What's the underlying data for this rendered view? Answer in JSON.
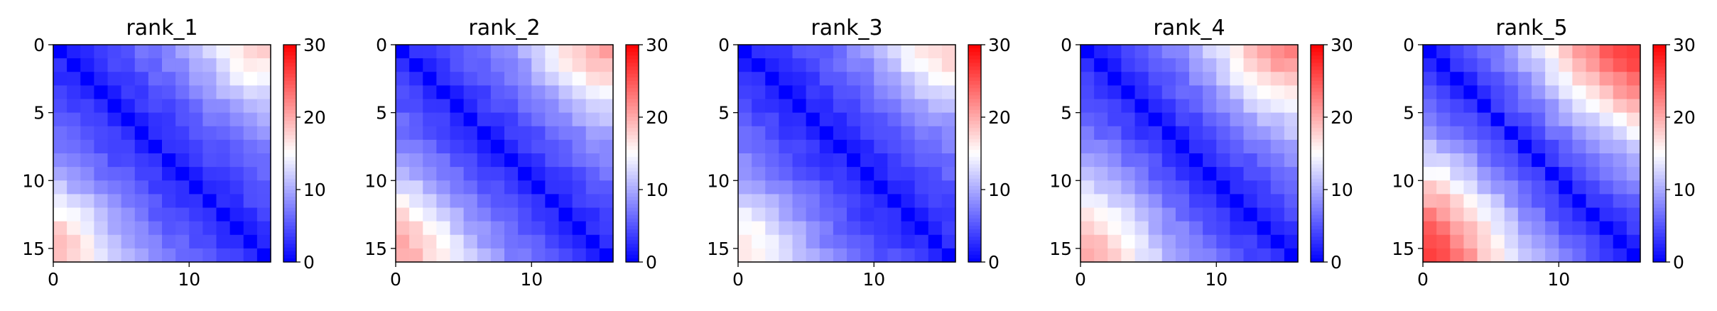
{
  "chart_data": [
    {
      "type": "heatmap",
      "title": "rank_1",
      "size": 16,
      "xticks": [
        0,
        10
      ],
      "yticks": [
        0,
        5,
        10,
        15
      ],
      "colorbar": {
        "min": 0,
        "max": 30,
        "ticks": [
          0,
          10,
          20,
          30
        ],
        "colormap": "bwr"
      },
      "profile": {
        "band": 0.8,
        "spread": 1.4,
        "extra": [
          [
            14,
            0,
            6.0,
            1.4
          ],
          [
            0,
            14,
            5.0,
            1.2
          ]
        ]
      }
    },
    {
      "type": "heatmap",
      "title": "rank_2",
      "size": 16,
      "xticks": [
        0,
        10
      ],
      "yticks": [
        0,
        5,
        10,
        15
      ],
      "colorbar": {
        "min": 0,
        "max": 30,
        "ticks": [
          0,
          10,
          20,
          30
        ],
        "colormap": "bwr"
      },
      "profile": {
        "band": 0.7,
        "spread": 1.6,
        "extra": [
          [
            14,
            0,
            6.0,
            1.5
          ],
          [
            0,
            14,
            6.0,
            1.3
          ]
        ]
      }
    },
    {
      "type": "heatmap",
      "title": "rank_3",
      "size": 16,
      "xticks": [
        0,
        10
      ],
      "yticks": [
        0,
        5,
        10,
        15
      ],
      "colorbar": {
        "min": 0,
        "max": 30,
        "ticks": [
          0,
          10,
          20,
          30
        ],
        "colormap": "bwr"
      },
      "profile": {
        "band": 0.7,
        "spread": 1.3,
        "extra": [
          [
            14,
            0,
            5.0,
            1.4
          ],
          [
            0,
            14,
            6.0,
            1.3
          ]
        ]
      }
    },
    {
      "type": "heatmap",
      "title": "rank_4",
      "size": 16,
      "xticks": [
        0,
        10
      ],
      "yticks": [
        0,
        5,
        10,
        15
      ],
      "colorbar": {
        "min": 0,
        "max": 30,
        "ticks": [
          0,
          10,
          20,
          30
        ],
        "colormap": "bwr"
      },
      "profile": {
        "band": 0.6,
        "spread": 1.7,
        "extra": [
          [
            14,
            0,
            5.0,
            1.6
          ],
          [
            0,
            14,
            7.0,
            1.6
          ]
        ]
      }
    },
    {
      "type": "heatmap",
      "title": "rank_5",
      "size": 16,
      "xticks": [
        0,
        10
      ],
      "yticks": [
        0,
        5,
        10,
        15
      ],
      "colorbar": {
        "min": 0,
        "max": 30,
        "ticks": [
          0,
          10,
          20,
          30
        ],
        "colormap": "bwr"
      },
      "profile": {
        "band": 0.5,
        "spread": 2.0,
        "extra": [
          [
            14,
            0,
            9.0,
            2.0
          ],
          [
            0,
            14,
            9.0,
            2.0
          ]
        ]
      }
    }
  ]
}
